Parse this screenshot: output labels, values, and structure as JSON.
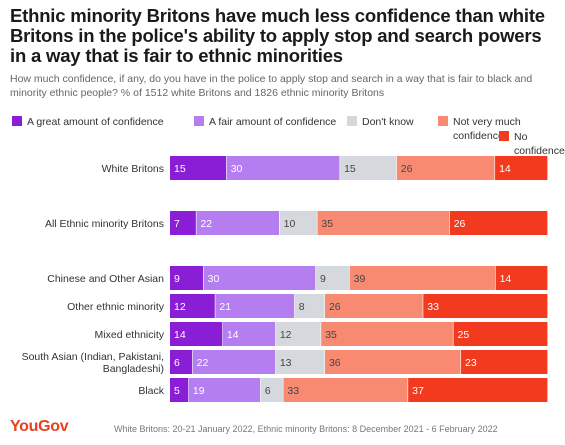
{
  "title": "Ethnic minority Britons have much less confidence than white Britons in the police's ability to apply stop and search powers in a way that is fair to ethnic minorities",
  "subtitle": "How much confidence, if any, do you have in the police to apply stop and search in a way that is fair to black and minority ethnic people? % of 1512 white Britons and 1826 ethnic minority Britons",
  "footer": {
    "logo": "YouGov",
    "note": "White Britons: 20-21 January 2022, Ethnic minority Britons: 8 December 2021 - 6 February 2022"
  },
  "chart_data": {
    "type": "bar",
    "orientation": "horizontal",
    "stacked": true,
    "categories": [
      "White Britons",
      "All Ethnic minority Britons",
      "Chinese and Other Asian",
      "Other ethnic minority",
      "Mixed ethnicity",
      "South Asian (Indian, Pakistani, Bangladeshi)",
      "Black"
    ],
    "series": [
      {
        "name": "A great amount of confidence",
        "color": "#8a1ed6",
        "values": [
          15,
          7,
          9,
          12,
          14,
          6,
          5
        ]
      },
      {
        "name": "A fair amount of confidence",
        "color": "#b57ef0",
        "values": [
          30,
          22,
          30,
          21,
          14,
          22,
          19
        ]
      },
      {
        "name": "Don't know",
        "color": "#d5d8dd",
        "values": [
          15,
          10,
          9,
          8,
          12,
          13,
          6
        ]
      },
      {
        "name": "Not very much confidence",
        "color": "#f98a72",
        "values": [
          26,
          35,
          39,
          26,
          35,
          36,
          33
        ]
      },
      {
        "name": "No confidence at all",
        "color": "#f23a1e",
        "values": [
          14,
          26,
          14,
          33,
          25,
          23,
          37
        ]
      }
    ],
    "legend_position": "top",
    "grid": false
  }
}
